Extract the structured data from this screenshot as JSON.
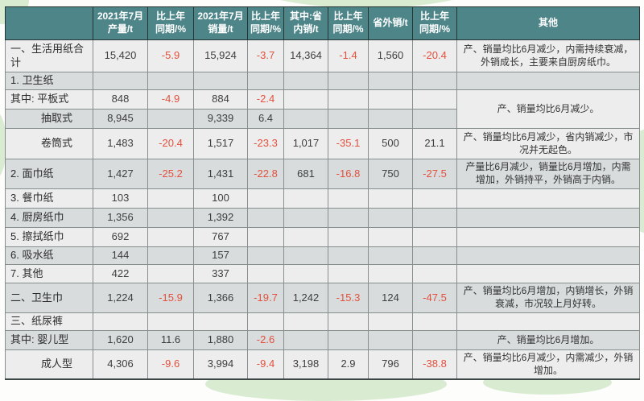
{
  "accent_colors": {
    "header_background": "#4d8589",
    "header_text": "#ffffff",
    "row_light": "#ecedec",
    "row_dark": "#d8dcdc",
    "negative_value": "#e4503e",
    "watermark_green": "#d9ecd2"
  },
  "chart_data": {
    "type": "table",
    "title": "",
    "columns": [
      "",
      "2021年7月\n产量/t",
      "比上年\n同期/%",
      "2021年7月\n销量/t",
      "比上年\n同期/%",
      "其中:省\n内销/t",
      "比上年\n同期/%",
      "省外销/t",
      "比上年\n同期/%",
      "其他"
    ],
    "rows": [
      {
        "label": "一、生活用纸合计",
        "values": [
          "15,420",
          "-5.9",
          "15,924",
          "-3.7",
          "14,364",
          "-1.4",
          "1,560",
          "-20.4"
        ],
        "other": "产、销量均比6月减少，内需持续衰减，外销成长，主要来自厨房纸巾。"
      },
      {
        "label": "1. 卫生纸",
        "values": [
          "",
          "",
          "",
          "",
          "",
          "",
          "",
          ""
        ],
        "other": ""
      },
      {
        "label": "其中: 平板式",
        "values": [
          "848",
          "-4.9",
          "884",
          "-2.4",
          "",
          "",
          "",
          ""
        ],
        "other": "产、销量均比6月减少。",
        "otherRowspan": 2
      },
      {
        "label": "抽取式",
        "indent": true,
        "values": [
          "8,945",
          "",
          "9,339",
          "6.4",
          "",
          "",
          "",
          ""
        ],
        "otherCovered": true
      },
      {
        "label": "卷筒式",
        "indent": true,
        "values": [
          "1,483",
          "-20.4",
          "1,517",
          "-23.3",
          "1,017",
          "-35.1",
          "500",
          "21.1"
        ],
        "other": "产、销量均比6月减少，省内销减少，市况并无起色。"
      },
      {
        "label": "2. 面巾纸",
        "values": [
          "1,427",
          "-25.2",
          "1,431",
          "-22.8",
          "681",
          "-16.8",
          "750",
          "-27.5"
        ],
        "other": "产量比6月减少，销量比6月增加，内需增加，外销持平，外销高于内销。"
      },
      {
        "label": "3. 餐巾纸",
        "values": [
          "103",
          "",
          "100",
          "",
          "",
          "",
          "",
          ""
        ],
        "other": ""
      },
      {
        "label": "4. 厨房纸巾",
        "values": [
          "1,356",
          "",
          "1,392",
          "",
          "",
          "",
          "",
          ""
        ],
        "other": ""
      },
      {
        "label": "5. 擦拭纸巾",
        "values": [
          "692",
          "",
          "767",
          "",
          "",
          "",
          "",
          ""
        ],
        "other": ""
      },
      {
        "label": "6. 吸水纸",
        "values": [
          "144",
          "",
          "157",
          "",
          "",
          "",
          "",
          ""
        ],
        "other": ""
      },
      {
        "label": "7. 其他",
        "values": [
          "422",
          "",
          "337",
          "",
          "",
          "",
          "",
          ""
        ],
        "other": ""
      },
      {
        "label": "二、卫生巾",
        "values": [
          "1,224",
          "-15.9",
          "1,366",
          "-19.7",
          "1,242",
          "-15.3",
          "124",
          "-47.5"
        ],
        "other": "产、销量均比6月增加，内销增长，外销衰减，市况较上月好转。"
      },
      {
        "label": "三、纸尿裤",
        "values": [
          "",
          "",
          "",
          "",
          "",
          "",
          "",
          ""
        ],
        "other": ""
      },
      {
        "label": "其中: 婴儿型",
        "values": [
          "1,620",
          "11.6",
          "1,880",
          "-2.6",
          "",
          "",
          "",
          ""
        ],
        "other": "产、销量均比6月增加。"
      },
      {
        "label": "成人型",
        "indent": true,
        "values": [
          "4,306",
          "-9.6",
          "3,994",
          "-9.4",
          "3,198",
          "2.9",
          "796",
          "-38.8"
        ],
        "other": "产、销量均比6月减少，内需减少，外销增加。"
      }
    ]
  }
}
